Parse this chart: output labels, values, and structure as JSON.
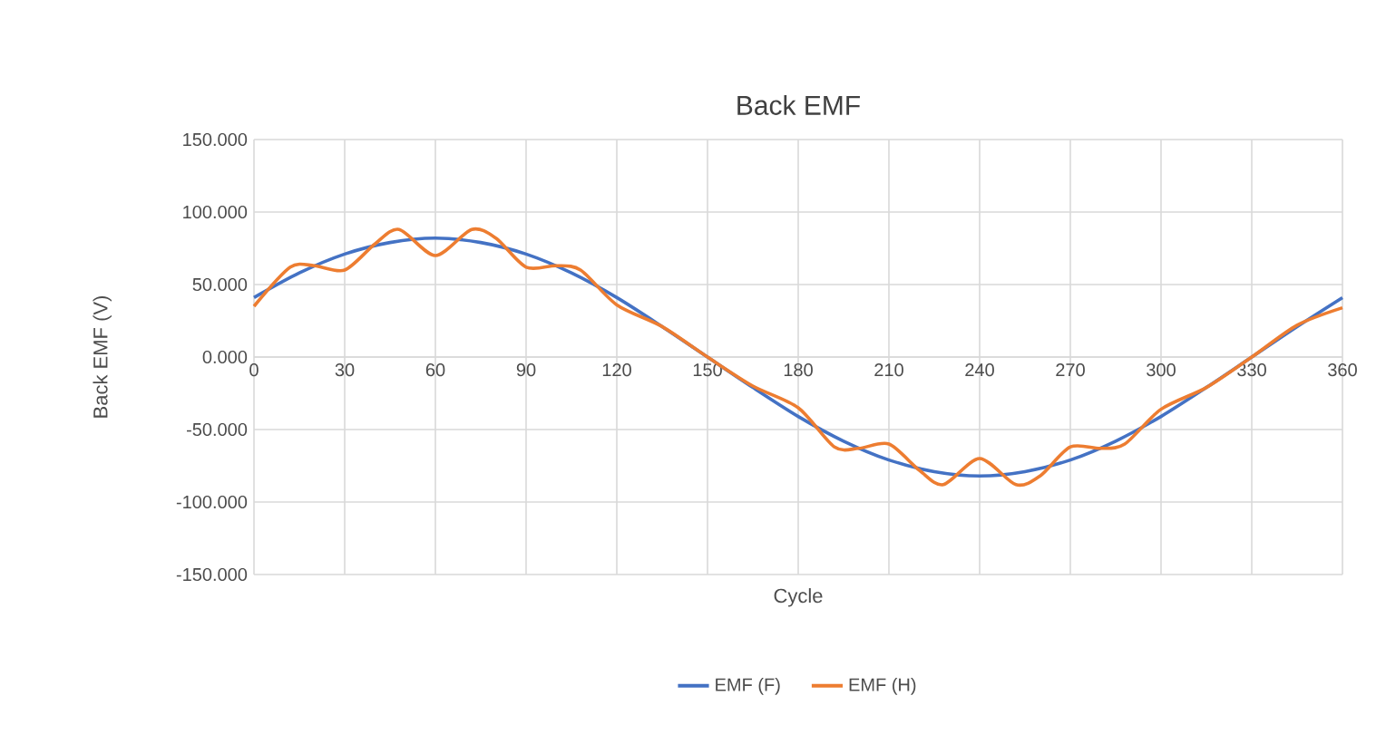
{
  "chart_data": {
    "type": "line",
    "title": "Back EMF",
    "xlabel": "Cycle",
    "ylabel": "Back EMF (V)",
    "xlim": [
      0,
      360
    ],
    "xticks": [
      0,
      30,
      60,
      90,
      120,
      150,
      180,
      210,
      240,
      270,
      300,
      330,
      360
    ],
    "ylim": [
      -150,
      150
    ],
    "yticks": [
      {
        "value": -150,
        "label": "-150.000"
      },
      {
        "value": -100,
        "label": "-100.000"
      },
      {
        "value": -50,
        "label": "-50.000"
      },
      {
        "value": 0,
        "label": "0.000"
      },
      {
        "value": 50,
        "label": "50.000"
      },
      {
        "value": 100,
        "label": "100.000"
      },
      {
        "value": 150,
        "label": "150.000"
      }
    ],
    "grid": true,
    "legend": "bottom",
    "marker": "none",
    "line_style": "solid",
    "series": [
      {
        "name": "EMF (F)",
        "color": "#4472c4",
        "x": [
          0,
          15,
          30,
          45,
          60,
          75,
          90,
          105,
          120,
          135,
          150,
          165,
          180,
          195,
          210,
          225,
          240,
          255,
          270,
          285,
          300,
          315,
          330,
          345,
          360
        ],
        "values": [
          41,
          58,
          71,
          79,
          82,
          79,
          71,
          58,
          41,
          21,
          0,
          -21,
          -41,
          -58,
          -71,
          -79,
          -82,
          -79,
          -71,
          -58,
          -41,
          -21,
          0,
          21,
          41
        ]
      },
      {
        "name": "EMF (H)",
        "color": "#ed7d31",
        "x": [
          0,
          12,
          20,
          30,
          40,
          48,
          60,
          72,
          80,
          90,
          100,
          108,
          120,
          135,
          150,
          165,
          180,
          192,
          200,
          210,
          220,
          228,
          240,
          252,
          260,
          270,
          280,
          288,
          300,
          315,
          330,
          345,
          360
        ],
        "values": [
          35,
          62,
          63,
          60,
          78,
          88,
          70,
          88,
          82,
          62,
          63,
          60,
          36,
          21,
          0,
          -20,
          -35,
          -62,
          -63,
          -60,
          -78,
          -88,
          -70,
          -88,
          -82,
          -62,
          -63,
          -60,
          -36,
          -21,
          0,
          22,
          34
        ]
      }
    ]
  }
}
